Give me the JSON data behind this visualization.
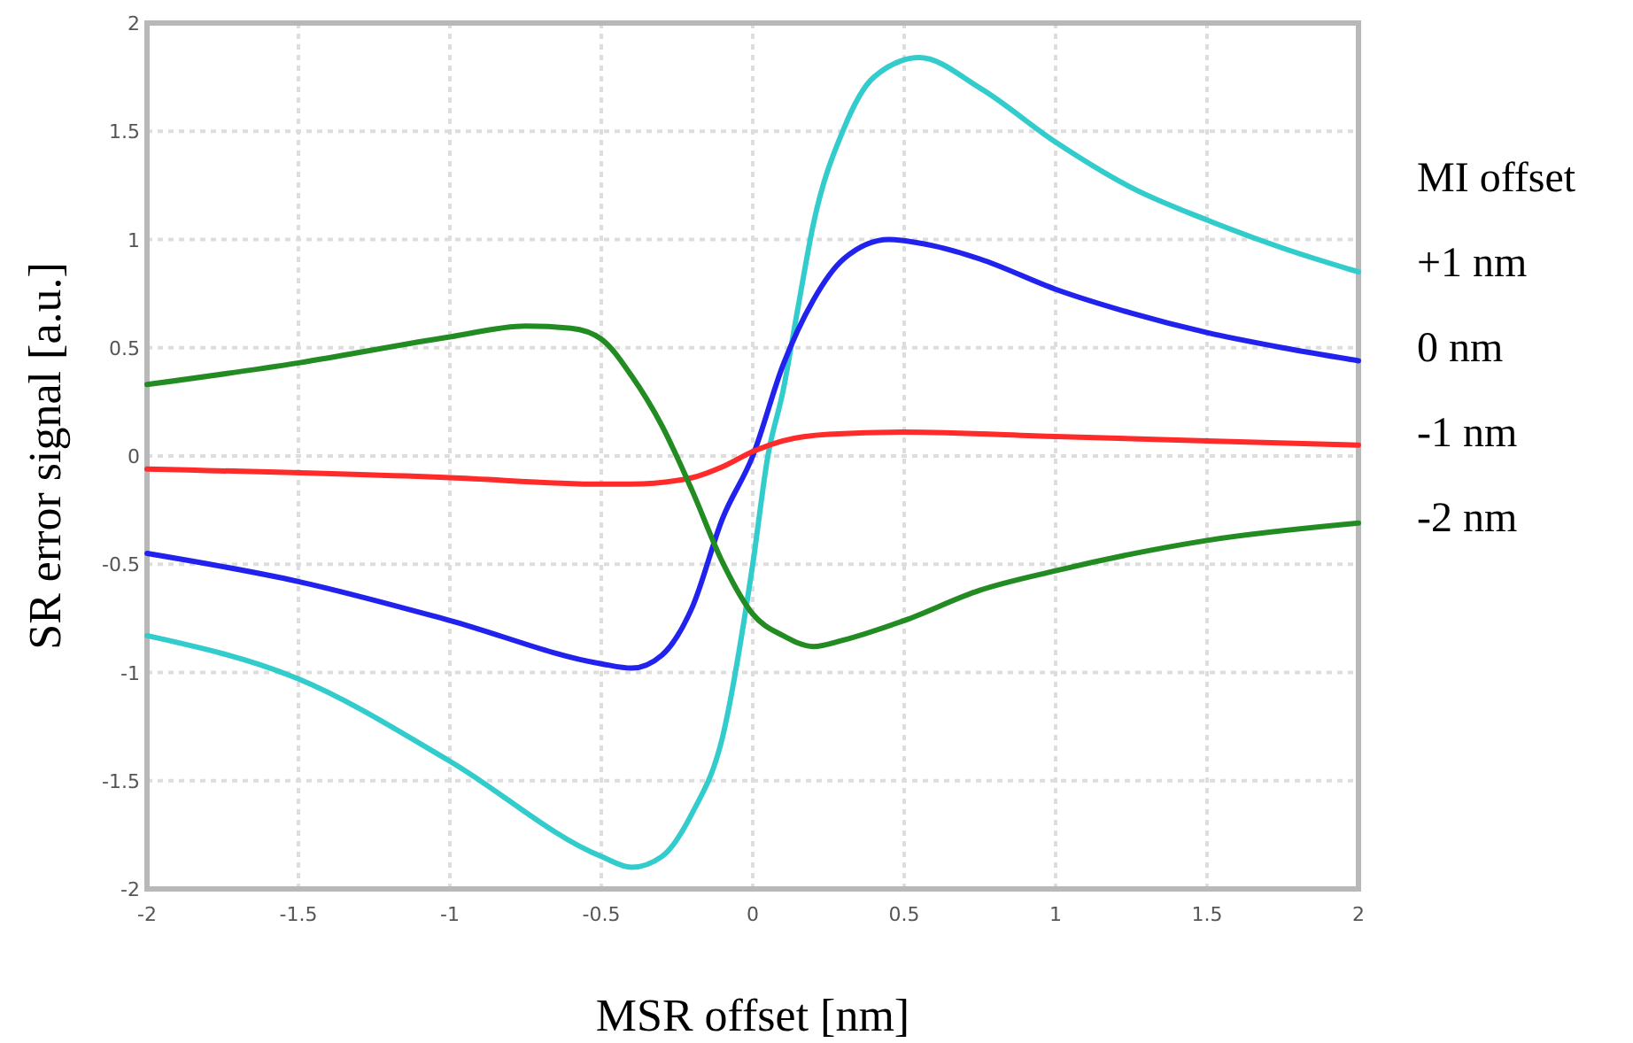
{
  "chart_data": {
    "type": "line",
    "xlabel": "MSR offset [nm]",
    "ylabel": "SR error signal [a.u.]",
    "legend_title": "MI offset",
    "legend": "right",
    "grid": true,
    "line_style": "solid",
    "xlim": [
      -2,
      2
    ],
    "ylim": [
      -2,
      2
    ],
    "xticks": [
      -2,
      -1.5,
      -1,
      -0.5,
      0,
      0.5,
      1,
      1.5,
      2
    ],
    "yticks": [
      -2,
      -1.5,
      -1,
      -0.5,
      0,
      0.5,
      1,
      1.5,
      2
    ],
    "series": [
      {
        "name": "+1 nm",
        "color": "#33cccc",
        "x": [
          -2,
          -1.5,
          -1,
          -0.5,
          -0.4,
          -0.3,
          -0.2,
          -0.1,
          0,
          0.05,
          0.1,
          0.15,
          0.2,
          0.3,
          0.4,
          0.55,
          0.75,
          1,
          1.25,
          1.5,
          1.75,
          2
        ],
        "values": [
          -0.83,
          -1.03,
          -1.41,
          -1.85,
          -1.9,
          -1.85,
          -1.65,
          -1.3,
          -0.5,
          0,
          0.3,
          0.69,
          1.07,
          1.51,
          1.75,
          1.84,
          1.7,
          1.45,
          1.24,
          1.09,
          0.96,
          0.85
        ]
      },
      {
        "name": "0 nm",
        "color": "#2222ee",
        "x": [
          -2,
          -1.5,
          -1,
          -0.5,
          -0.4,
          -0.3,
          -0.2,
          -0.1,
          0,
          0.1,
          0.2,
          0.3,
          0.45,
          0.6,
          0.75,
          1,
          1.25,
          1.5,
          1.75,
          2
        ],
        "values": [
          -0.45,
          -0.58,
          -0.76,
          -0.96,
          -0.98,
          -0.92,
          -0.7,
          -0.29,
          0,
          0.42,
          0.72,
          0.91,
          1.0,
          0.97,
          0.91,
          0.77,
          0.66,
          0.57,
          0.5,
          0.44
        ]
      },
      {
        "name": "-1 nm",
        "color": "#ff2a2a",
        "x": [
          -2,
          -1,
          -0.5,
          -0.4,
          -0.2,
          -0.1,
          0,
          0.1,
          0.25,
          0.5,
          1,
          1.5,
          2
        ],
        "values": [
          -0.06,
          -0.1,
          -0.13,
          -0.13,
          -0.1,
          -0.05,
          0.02,
          0.07,
          0.1,
          0.11,
          0.09,
          0.07,
          0.05
        ]
      },
      {
        "name": "-2 nm",
        "color": "#228b22",
        "x": [
          -2,
          -1.5,
          -1,
          -0.75,
          -0.6,
          -0.5,
          -0.4,
          -0.3,
          -0.2,
          -0.1,
          0,
          0.1,
          0.2,
          0.3,
          0.5,
          0.75,
          1,
          1.5,
          2
        ],
        "values": [
          0.33,
          0.43,
          0.55,
          0.6,
          0.59,
          0.54,
          0.37,
          0.14,
          -0.16,
          -0.49,
          -0.73,
          -0.83,
          -0.88,
          -0.85,
          -0.76,
          -0.62,
          -0.53,
          -0.39,
          -0.31
        ]
      }
    ]
  }
}
